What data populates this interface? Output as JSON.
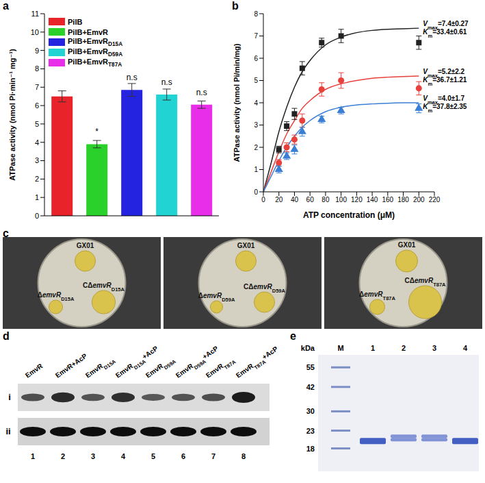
{
  "chart_data": [
    {
      "panel": "a",
      "type": "bar",
      "categories": [
        "PilB",
        "PilB+EmvR",
        "PilB+EmvRD15A",
        "PilB+EmvRD59A",
        "PilB+EmvRT87A"
      ],
      "values": [
        6.5,
        3.9,
        6.85,
        6.6,
        6.05
      ],
      "errors": [
        0.3,
        0.2,
        0.35,
        0.3,
        0.2
      ],
      "annotations": [
        null,
        "*",
        "n.s",
        "n.s",
        "n.s"
      ],
      "colors": [
        "#e8232a",
        "#2bd12b",
        "#2424e0",
        "#22d3d3",
        "#e82ee8"
      ],
      "y_label": "ATPase activity (nmol Pi·min⁻¹ mg⁻¹)",
      "ylim": [
        0,
        11
      ],
      "yticks": [
        0,
        1,
        2,
        3,
        4,
        5,
        6,
        7,
        8,
        9,
        10,
        11
      ],
      "legend": "top-left",
      "tick_labels": "y"
    },
    {
      "panel": "b",
      "type": "line",
      "x_label": "ATP concentration (μM)",
      "y_label": "ATPase activity (nmol Pi/min/mg)",
      "xlim": [
        0,
        220
      ],
      "xticks": [
        0,
        20,
        40,
        60,
        80,
        100,
        120,
        140,
        160,
        180,
        200,
        220
      ],
      "ylim": [
        0,
        8
      ],
      "yticks": [
        0,
        1,
        2,
        3,
        4,
        5,
        6,
        7,
        8
      ],
      "series": [
        {
          "type": "line",
          "color": "#222222",
          "x": [
            0,
            10,
            20,
            30,
            40,
            50,
            60,
            80,
            100,
            120,
            140,
            160,
            180,
            200
          ],
          "values": [
            0,
            1.3,
            2.7,
            3.8,
            4.7,
            5.4,
            5.9,
            6.6,
            6.95,
            7.15,
            7.25,
            7.3,
            7.32,
            7.35
          ],
          "annotations": [
            "Vmax=7.4±0.27",
            "Km=33.4±0.61"
          ]
        },
        {
          "type": "line",
          "color": "#e8413c",
          "x": [
            0,
            10,
            20,
            30,
            40,
            50,
            60,
            80,
            100,
            120,
            140,
            160,
            180,
            200
          ],
          "values": [
            0,
            0.9,
            1.8,
            2.6,
            3.2,
            3.75,
            4.1,
            4.6,
            4.85,
            5.0,
            5.1,
            5.15,
            5.18,
            5.2
          ],
          "annotations": [
            "Vmax=5.2±2.2",
            "Km=36.7±1.21"
          ]
        },
        {
          "type": "line",
          "color": "#3a7fd5",
          "x": [
            0,
            10,
            20,
            30,
            40,
            50,
            60,
            80,
            100,
            120,
            140,
            160,
            180,
            200
          ],
          "values": [
            0,
            0.7,
            1.4,
            2.0,
            2.5,
            2.9,
            3.2,
            3.6,
            3.8,
            3.9,
            3.95,
            3.98,
            4.0,
            4.0
          ],
          "annotations": [
            "Vmax=4.0±1.7",
            "Km=37.8±2.35"
          ]
        },
        {
          "type": "scatter",
          "color": "#222222",
          "marker": "square",
          "x": [
            20,
            30,
            40,
            50,
            75,
            100,
            200
          ],
          "values": [
            1.9,
            2.95,
            3.5,
            5.55,
            6.7,
            7.0,
            6.7
          ],
          "errors": [
            0.15,
            0.2,
            0.25,
            0.3,
            0.2,
            0.3,
            0.3
          ]
        },
        {
          "type": "scatter",
          "color": "#e8413c",
          "marker": "circle",
          "x": [
            20,
            30,
            40,
            50,
            75,
            100,
            200
          ],
          "values": [
            1.3,
            2.0,
            2.35,
            3.2,
            4.6,
            5.0,
            4.65
          ],
          "errors": [
            0.15,
            0.2,
            0.2,
            0.3,
            0.3,
            0.35,
            0.3
          ]
        },
        {
          "type": "scatter",
          "color": "#3a7fd5",
          "marker": "triangle",
          "x": [
            20,
            30,
            40,
            50,
            75,
            100,
            200
          ],
          "values": [
            1.0,
            1.6,
            1.9,
            2.7,
            3.25,
            3.65,
            3.75
          ],
          "errors": [
            0.15,
            0.15,
            0.2,
            0.2,
            0.15,
            0.15,
            0.2
          ]
        }
      ]
    }
  ],
  "plates": {
    "panel": "c",
    "plates": [
      {
        "labels": [
          "GX01",
          "ΔemvRD15A",
          "CΔemvRD15A"
        ]
      },
      {
        "labels": [
          "GX01",
          "ΔemvRD59A",
          "CΔemvRD59A"
        ]
      },
      {
        "labels": [
          "GX01",
          "ΔemvRT87A",
          "CΔemvRT87A"
        ]
      }
    ]
  },
  "blot": {
    "panel": "d",
    "lanes": [
      "EmvR",
      "EmvR+AcP",
      "EmvRD15A",
      "EmvRD15A+AcP",
      "EmvRD59A",
      "EmvRD59A+AcP",
      "EmvRT87A",
      "EmvRT87A+AcP"
    ],
    "rows": [
      "i",
      "ii"
    ],
    "lane_numbers": [
      1,
      2,
      3,
      4,
      5,
      6,
      7,
      8
    ]
  },
  "gel": {
    "panel": "e",
    "unit": "kDa",
    "marker": "M",
    "ladder": [
      55,
      42,
      30,
      23,
      18
    ],
    "lanes": [
      1,
      2,
      3,
      4
    ],
    "bands": [
      [
        20
      ],
      [
        21,
        20
      ],
      [
        21,
        20
      ],
      [
        20
      ]
    ]
  }
}
